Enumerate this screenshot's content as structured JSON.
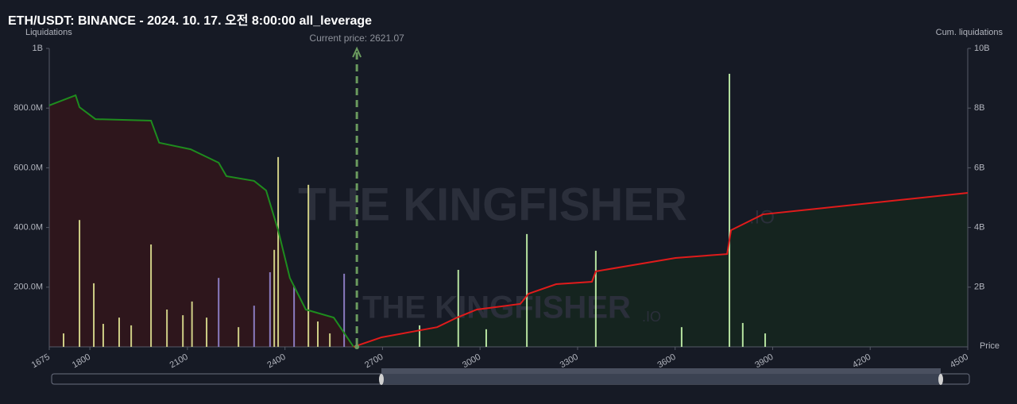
{
  "chart_data": {
    "type": "bar",
    "title": "ETH/USDT: BINANCE - 2024. 10. 17. 오전 8:00:00 all_leverage",
    "y_label": "Liquidations",
    "y2_label": "Cum. liquidations",
    "x_label": "Price",
    "watermark": "THE KINGFISHER",
    "watermark_suffix": ".IO",
    "annotation": {
      "x": 2621.07,
      "label": "Current price: 2621.07",
      "color": "#6a9a5e"
    },
    "xlim": [
      1675,
      4500
    ],
    "xticks": [
      1675,
      1800,
      2100,
      2400,
      2700,
      3000,
      3300,
      3600,
      3900,
      4200,
      4500
    ],
    "ylim": [
      0,
      1000000000
    ],
    "yticks": [
      {
        "value": 200000000,
        "label": "200.0M"
      },
      {
        "value": 400000000,
        "label": "400.0M"
      },
      {
        "value": 600000000,
        "label": "600.0M"
      },
      {
        "value": 800000000,
        "label": "800.0M"
      },
      {
        "value": 1000000000,
        "label": "1B"
      }
    ],
    "y2lim": [
      0,
      10000000000
    ],
    "y2ticks": [
      {
        "value": 2000000000,
        "label": "2B"
      },
      {
        "value": 4000000000,
        "label": "4B"
      },
      {
        "value": 6000000000,
        "label": "6B"
      },
      {
        "value": 8000000000,
        "label": "8B"
      },
      {
        "value": 10000000000,
        "label": "10B"
      }
    ],
    "series": [
      {
        "type": "bar",
        "color": "#cfcf86",
        "x": [
          1719,
          1768,
          1812,
          1841,
          1890,
          1927,
          1988,
          2037,
          2086,
          2114,
          2159,
          2257,
          2367,
          2379,
          2472,
          2501,
          2538
        ],
        "values": [
          45000000,
          425000000,
          213000000,
          77000000,
          98000000,
          72000000,
          343000000,
          125000000,
          106000000,
          152000000,
          98000000,
          66000000,
          325000000,
          636000000,
          543000000,
          85000000,
          45000000
        ]
      },
      {
        "type": "bar",
        "color": "#8a7bc0",
        "x": [
          2196,
          2305,
          2354,
          2428,
          2582
        ],
        "values": [
          231000000,
          138000000,
          250000000,
          205000000,
          245000000
        ]
      },
      {
        "type": "bar",
        "color": "#b6e3a0",
        "x": [
          2814,
          2933,
          3019,
          3144,
          3356,
          3620,
          3767,
          3808,
          3877
        ],
        "values": [
          72000000,
          258000000,
          59000000,
          378000000,
          322000000,
          66000000,
          915000000,
          80000000,
          45000000
        ]
      },
      {
        "type": "line",
        "axis": "y2",
        "color": "#1e8c1e",
        "fill": "#2e161c",
        "x": [
          1675,
          1756,
          1768,
          1817,
          1988,
          2013,
          2110,
          2196,
          2220,
          2305,
          2342,
          2379,
          2415,
          2464,
          2550,
          2611
        ],
        "values": [
          8090000000,
          8430000000,
          8030000000,
          7630000000,
          7580000000,
          6840000000,
          6620000000,
          6170000000,
          5720000000,
          5560000000,
          5240000000,
          3910000000,
          2310000000,
          1250000000,
          980000000,
          0
        ]
      },
      {
        "type": "line",
        "axis": "y2",
        "color": "#e01b1b",
        "fill": "#15241f",
        "x": [
          2611,
          2697,
          2868,
          2929,
          2990,
          3124,
          3149,
          3234,
          3344,
          3356,
          3601,
          3760,
          3772,
          3870,
          4500
        ],
        "values": [
          0,
          320000000,
          660000000,
          980000000,
          1250000000,
          1440000000,
          1780000000,
          2100000000,
          2180000000,
          2530000000,
          2980000000,
          3110000000,
          3910000000,
          4440000000,
          5160000000
        ]
      }
    ]
  }
}
